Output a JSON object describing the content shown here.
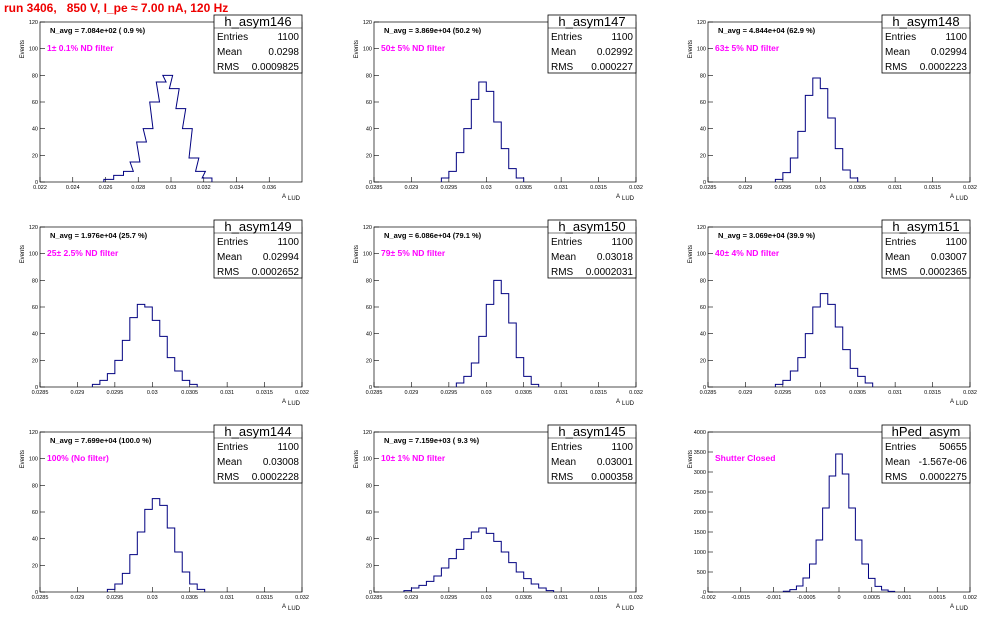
{
  "page": {
    "title": "run 3406,   850 V, I_pe ≈ 7.00 nA, 120 Hz",
    "x_axis_label": "A",
    "x_axis_sub": "LUD",
    "y_axis_label": "Events"
  },
  "chart_data": [
    {
      "type": "histogram",
      "name": "h_asym146",
      "annotation": "N_avg = 7.084e+02 ( 0.9 %)",
      "filter_label": "1± 0.1% ND filter",
      "stats": {
        "entries": "1100",
        "mean": "0.0298",
        "rms": "0.0009825"
      },
      "xlim": [
        0.022,
        0.038
      ],
      "xticks": [
        0.022,
        0.024,
        0.026,
        0.028,
        0.03,
        0.032,
        0.034,
        0.036
      ],
      "xtick_labels": [
        "0.022",
        "0.024",
        "0.026",
        "0.028",
        "0.03",
        "0.032",
        "0.034",
        "0.036"
      ],
      "ylim": [
        0,
        120
      ],
      "yticks": [
        0,
        20,
        40,
        60,
        80,
        100,
        120
      ],
      "x": [
        0.0262,
        0.0268,
        0.0274,
        0.0278,
        0.0282,
        0.0286,
        0.029,
        0.0294,
        0.0298,
        0.0302,
        0.0306,
        0.031,
        0.0314,
        0.0318,
        0.0322
      ],
      "values": [
        2,
        5,
        8,
        15,
        30,
        40,
        60,
        75,
        80,
        70,
        55,
        40,
        18,
        8,
        3
      ]
    },
    {
      "type": "histogram",
      "name": "h_asym147",
      "annotation": "N_avg = 3.869e+04 (50.2 %)",
      "filter_label": "50± 5% ND filter",
      "stats": {
        "entries": "1100",
        "mean": "0.02992",
        "rms": "0.000227"
      },
      "xlim": [
        0.0285,
        0.032
      ],
      "xticks": [
        0.0285,
        0.029,
        0.0295,
        0.03,
        0.0305,
        0.031,
        0.0315,
        0.032
      ],
      "xtick_labels": [
        "0.0285",
        "0.029",
        "0.0295",
        "0.03",
        "0.0305",
        "0.031",
        "0.0315",
        "0.032"
      ],
      "ylim": [
        0,
        120
      ],
      "yticks": [
        0,
        20,
        40,
        60,
        80,
        100,
        120
      ],
      "x": [
        0.02945,
        0.02955,
        0.02965,
        0.02975,
        0.02985,
        0.02995,
        0.03005,
        0.03015,
        0.03025,
        0.03035,
        0.03045
      ],
      "values": [
        3,
        8,
        22,
        40,
        62,
        75,
        68,
        45,
        25,
        10,
        3
      ]
    },
    {
      "type": "histogram",
      "name": "h_asym148",
      "annotation": "N_avg = 4.844e+04 (62.9 %)",
      "filter_label": "63± 5% ND filter",
      "stats": {
        "entries": "1100",
        "mean": "0.02994",
        "rms": "0.0002223"
      },
      "xlim": [
        0.0285,
        0.032
      ],
      "xticks": [
        0.0285,
        0.029,
        0.0295,
        0.03,
        0.0305,
        0.031,
        0.0315,
        0.032
      ],
      "xtick_labels": [
        "0.0285",
        "0.029",
        "0.0295",
        "0.03",
        "0.0305",
        "0.031",
        "0.0315",
        "0.032"
      ],
      "ylim": [
        0,
        120
      ],
      "yticks": [
        0,
        20,
        40,
        60,
        80,
        100,
        120
      ],
      "x": [
        0.02945,
        0.02955,
        0.02965,
        0.02975,
        0.02985,
        0.02995,
        0.03005,
        0.03015,
        0.03025,
        0.03035,
        0.03045
      ],
      "values": [
        2,
        7,
        18,
        38,
        65,
        78,
        70,
        48,
        25,
        9,
        3
      ]
    },
    {
      "type": "histogram",
      "name": "h_asym149",
      "annotation": "N_avg = 1.976e+04 (25.7 %)",
      "filter_label": "25± 2.5% ND filter",
      "stats": {
        "entries": "1100",
        "mean": "0.02994",
        "rms": "0.0002652"
      },
      "xlim": [
        0.0285,
        0.032
      ],
      "xticks": [
        0.0285,
        0.029,
        0.0295,
        0.03,
        0.0305,
        0.031,
        0.0315,
        0.032
      ],
      "xtick_labels": [
        "0.0285",
        "0.029",
        "0.0295",
        "0.03",
        "0.0305",
        "0.031",
        "0.0315",
        "0.032"
      ],
      "ylim": [
        0,
        120
      ],
      "yticks": [
        0,
        20,
        40,
        60,
        80,
        100,
        120
      ],
      "x": [
        0.02925,
        0.02935,
        0.02945,
        0.02955,
        0.02965,
        0.02975,
        0.02985,
        0.02995,
        0.03005,
        0.03015,
        0.03025,
        0.03035,
        0.03045,
        0.03055
      ],
      "values": [
        2,
        5,
        10,
        20,
        35,
        52,
        62,
        60,
        50,
        38,
        22,
        12,
        5,
        2
      ]
    },
    {
      "type": "histogram",
      "name": "h_asym150",
      "annotation": "N_avg = 6.086e+04 (79.1 %)",
      "filter_label": "79± 5% ND filter",
      "stats": {
        "entries": "1100",
        "mean": "0.03018",
        "rms": "0.0002031"
      },
      "xlim": [
        0.0285,
        0.032
      ],
      "xticks": [
        0.0285,
        0.029,
        0.0295,
        0.03,
        0.0305,
        0.031,
        0.0315,
        0.032
      ],
      "xtick_labels": [
        "0.0285",
        "0.029",
        "0.0295",
        "0.03",
        "0.0305",
        "0.031",
        "0.0315",
        "0.032"
      ],
      "ylim": [
        0,
        120
      ],
      "yticks": [
        0,
        20,
        40,
        60,
        80,
        100,
        120
      ],
      "x": [
        0.02965,
        0.02975,
        0.02985,
        0.02995,
        0.03005,
        0.03015,
        0.03025,
        0.03035,
        0.03045,
        0.03055,
        0.03065
      ],
      "values": [
        3,
        8,
        18,
        38,
        62,
        80,
        70,
        48,
        22,
        8,
        2
      ]
    },
    {
      "type": "histogram",
      "name": "h_asym151",
      "annotation": "N_avg = 3.069e+04 (39.9 %)",
      "filter_label": "40± 4% ND filter",
      "stats": {
        "entries": "1100",
        "mean": "0.03007",
        "rms": "0.0002365"
      },
      "xlim": [
        0.0285,
        0.032
      ],
      "xticks": [
        0.0285,
        0.029,
        0.0295,
        0.03,
        0.0305,
        0.031,
        0.0315,
        0.032
      ],
      "xtick_labels": [
        "0.0285",
        "0.029",
        "0.0295",
        "0.03",
        "0.0305",
        "0.031",
        "0.0315",
        "0.032"
      ],
      "ylim": [
        0,
        120
      ],
      "yticks": [
        0,
        20,
        40,
        60,
        80,
        100,
        120
      ],
      "x": [
        0.02945,
        0.02955,
        0.02965,
        0.02975,
        0.02985,
        0.02995,
        0.03005,
        0.03015,
        0.03025,
        0.03035,
        0.03045,
        0.03055,
        0.03065
      ],
      "values": [
        2,
        5,
        12,
        22,
        40,
        60,
        70,
        62,
        45,
        28,
        14,
        8,
        3
      ]
    },
    {
      "type": "histogram",
      "name": "h_asym144",
      "annotation": "N_avg = 7.699e+04 (100.0 %)",
      "filter_label": "100% (No filter)",
      "stats": {
        "entries": "1100",
        "mean": "0.03008",
        "rms": "0.0002228"
      },
      "xlim": [
        0.0285,
        0.032
      ],
      "xticks": [
        0.0285,
        0.029,
        0.0295,
        0.03,
        0.0305,
        0.031,
        0.0315,
        0.032
      ],
      "xtick_labels": [
        "0.0285",
        "0.029",
        "0.0295",
        "0.03",
        "0.0305",
        "0.031",
        "0.0315",
        "0.032"
      ],
      "ylim": [
        0,
        120
      ],
      "yticks": [
        0,
        20,
        40,
        60,
        80,
        100,
        120
      ],
      "x": [
        0.02945,
        0.02955,
        0.02965,
        0.02975,
        0.02985,
        0.02995,
        0.03005,
        0.03015,
        0.03025,
        0.03035,
        0.03045,
        0.03055,
        0.03065
      ],
      "values": [
        2,
        6,
        14,
        28,
        45,
        62,
        70,
        65,
        48,
        30,
        15,
        6,
        2
      ]
    },
    {
      "type": "histogram",
      "name": "h_asym145",
      "annotation": "N_avg = 7.159e+03 ( 9.3 %)",
      "filter_label": "10± 1% ND filter",
      "stats": {
        "entries": "1100",
        "mean": "0.03001",
        "rms": "0.000358"
      },
      "xlim": [
        0.0285,
        0.032
      ],
      "xticks": [
        0.0285,
        0.029,
        0.0295,
        0.03,
        0.0305,
        0.031,
        0.0315,
        0.032
      ],
      "xtick_labels": [
        "0.0285",
        "0.029",
        "0.0295",
        "0.03",
        "0.0305",
        "0.031",
        "0.0315",
        "0.032"
      ],
      "ylim": [
        0,
        120
      ],
      "yticks": [
        0,
        20,
        40,
        60,
        80,
        100,
        120
      ],
      "x": [
        0.02895,
        0.02905,
        0.02915,
        0.02925,
        0.02935,
        0.02945,
        0.02955,
        0.02965,
        0.02975,
        0.02985,
        0.02995,
        0.03005,
        0.03015,
        0.03025,
        0.03035,
        0.03045,
        0.03055,
        0.03065,
        0.03075,
        0.03085
      ],
      "values": [
        1,
        3,
        5,
        8,
        12,
        18,
        25,
        32,
        40,
        45,
        48,
        44,
        38,
        30,
        22,
        15,
        10,
        6,
        3,
        1
      ]
    },
    {
      "type": "histogram",
      "name": "hPed_asym",
      "annotation": "",
      "filter_label": "Shutter Closed",
      "stats": {
        "entries": "50655",
        "mean": "-1.567e-06",
        "rms": "0.0002275"
      },
      "xlim": [
        -0.002,
        0.002
      ],
      "xticks": [
        -0.002,
        -0.0015,
        -0.001,
        -0.0005,
        0,
        0.0005,
        0.001,
        0.0015,
        0.002
      ],
      "xtick_labels": [
        "-0.002",
        "-0.0015",
        "-0.001",
        "-0.0005",
        "0",
        "0.0005",
        "0.001",
        "0.0015",
        "0.002"
      ],
      "ylim": [
        0,
        4000
      ],
      "yticks": [
        0,
        500,
        1000,
        1500,
        2000,
        2500,
        3000,
        3500,
        4000
      ],
      "x": [
        -0.0008,
        -0.0007,
        -0.0006,
        -0.0005,
        -0.0004,
        -0.0003,
        -0.0002,
        -0.0001,
        0,
        0.0001,
        0.0002,
        0.0003,
        0.0004,
        0.0005,
        0.0006,
        0.0007,
        0.0008
      ],
      "values": [
        20,
        60,
        150,
        350,
        700,
        1300,
        2100,
        2900,
        3450,
        2950,
        2100,
        1300,
        700,
        340,
        140,
        50,
        15
      ]
    }
  ]
}
